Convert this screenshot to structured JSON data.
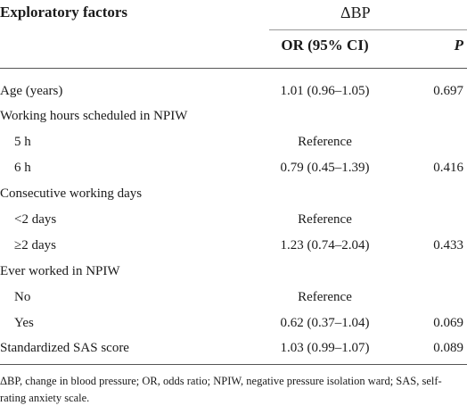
{
  "table": {
    "header": {
      "factor_col": "Exploratory factors",
      "group_col": "ΔBP",
      "or_col": "OR (95% CI)",
      "p_col": "P"
    },
    "rows": [
      {
        "label": "Age (years)",
        "or": "1.01 (0.96–1.05)",
        "p": "0.697"
      },
      {
        "label": "Working hours scheduled in NPIW",
        "or": "",
        "p": ""
      },
      {
        "label": "5 h",
        "or": "Reference",
        "p": ""
      },
      {
        "label": "6 h",
        "or": "0.79 (0.45–1.39)",
        "p": "0.416"
      },
      {
        "label": "Consecutive working days",
        "or": "",
        "p": ""
      },
      {
        "label": "<2 days",
        "or": "Reference",
        "p": ""
      },
      {
        "label": "≥2 days",
        "or": "1.23 (0.74–2.04)",
        "p": "0.433"
      },
      {
        "label": "Ever worked in NPIW",
        "or": "",
        "p": ""
      },
      {
        "label": "No",
        "or": "Reference",
        "p": ""
      },
      {
        "label": "Yes",
        "or": "0.62 (0.37–1.04)",
        "p": "0.069"
      },
      {
        "label": "Standardized SAS score",
        "or": "1.03 (0.99–1.07)",
        "p": "0.089"
      }
    ],
    "footnote": "ΔBP, change in blood pressure; OR, odds ratio; NPIW, negative pressure isolation ward; SAS, self-rating anxiety scale."
  }
}
